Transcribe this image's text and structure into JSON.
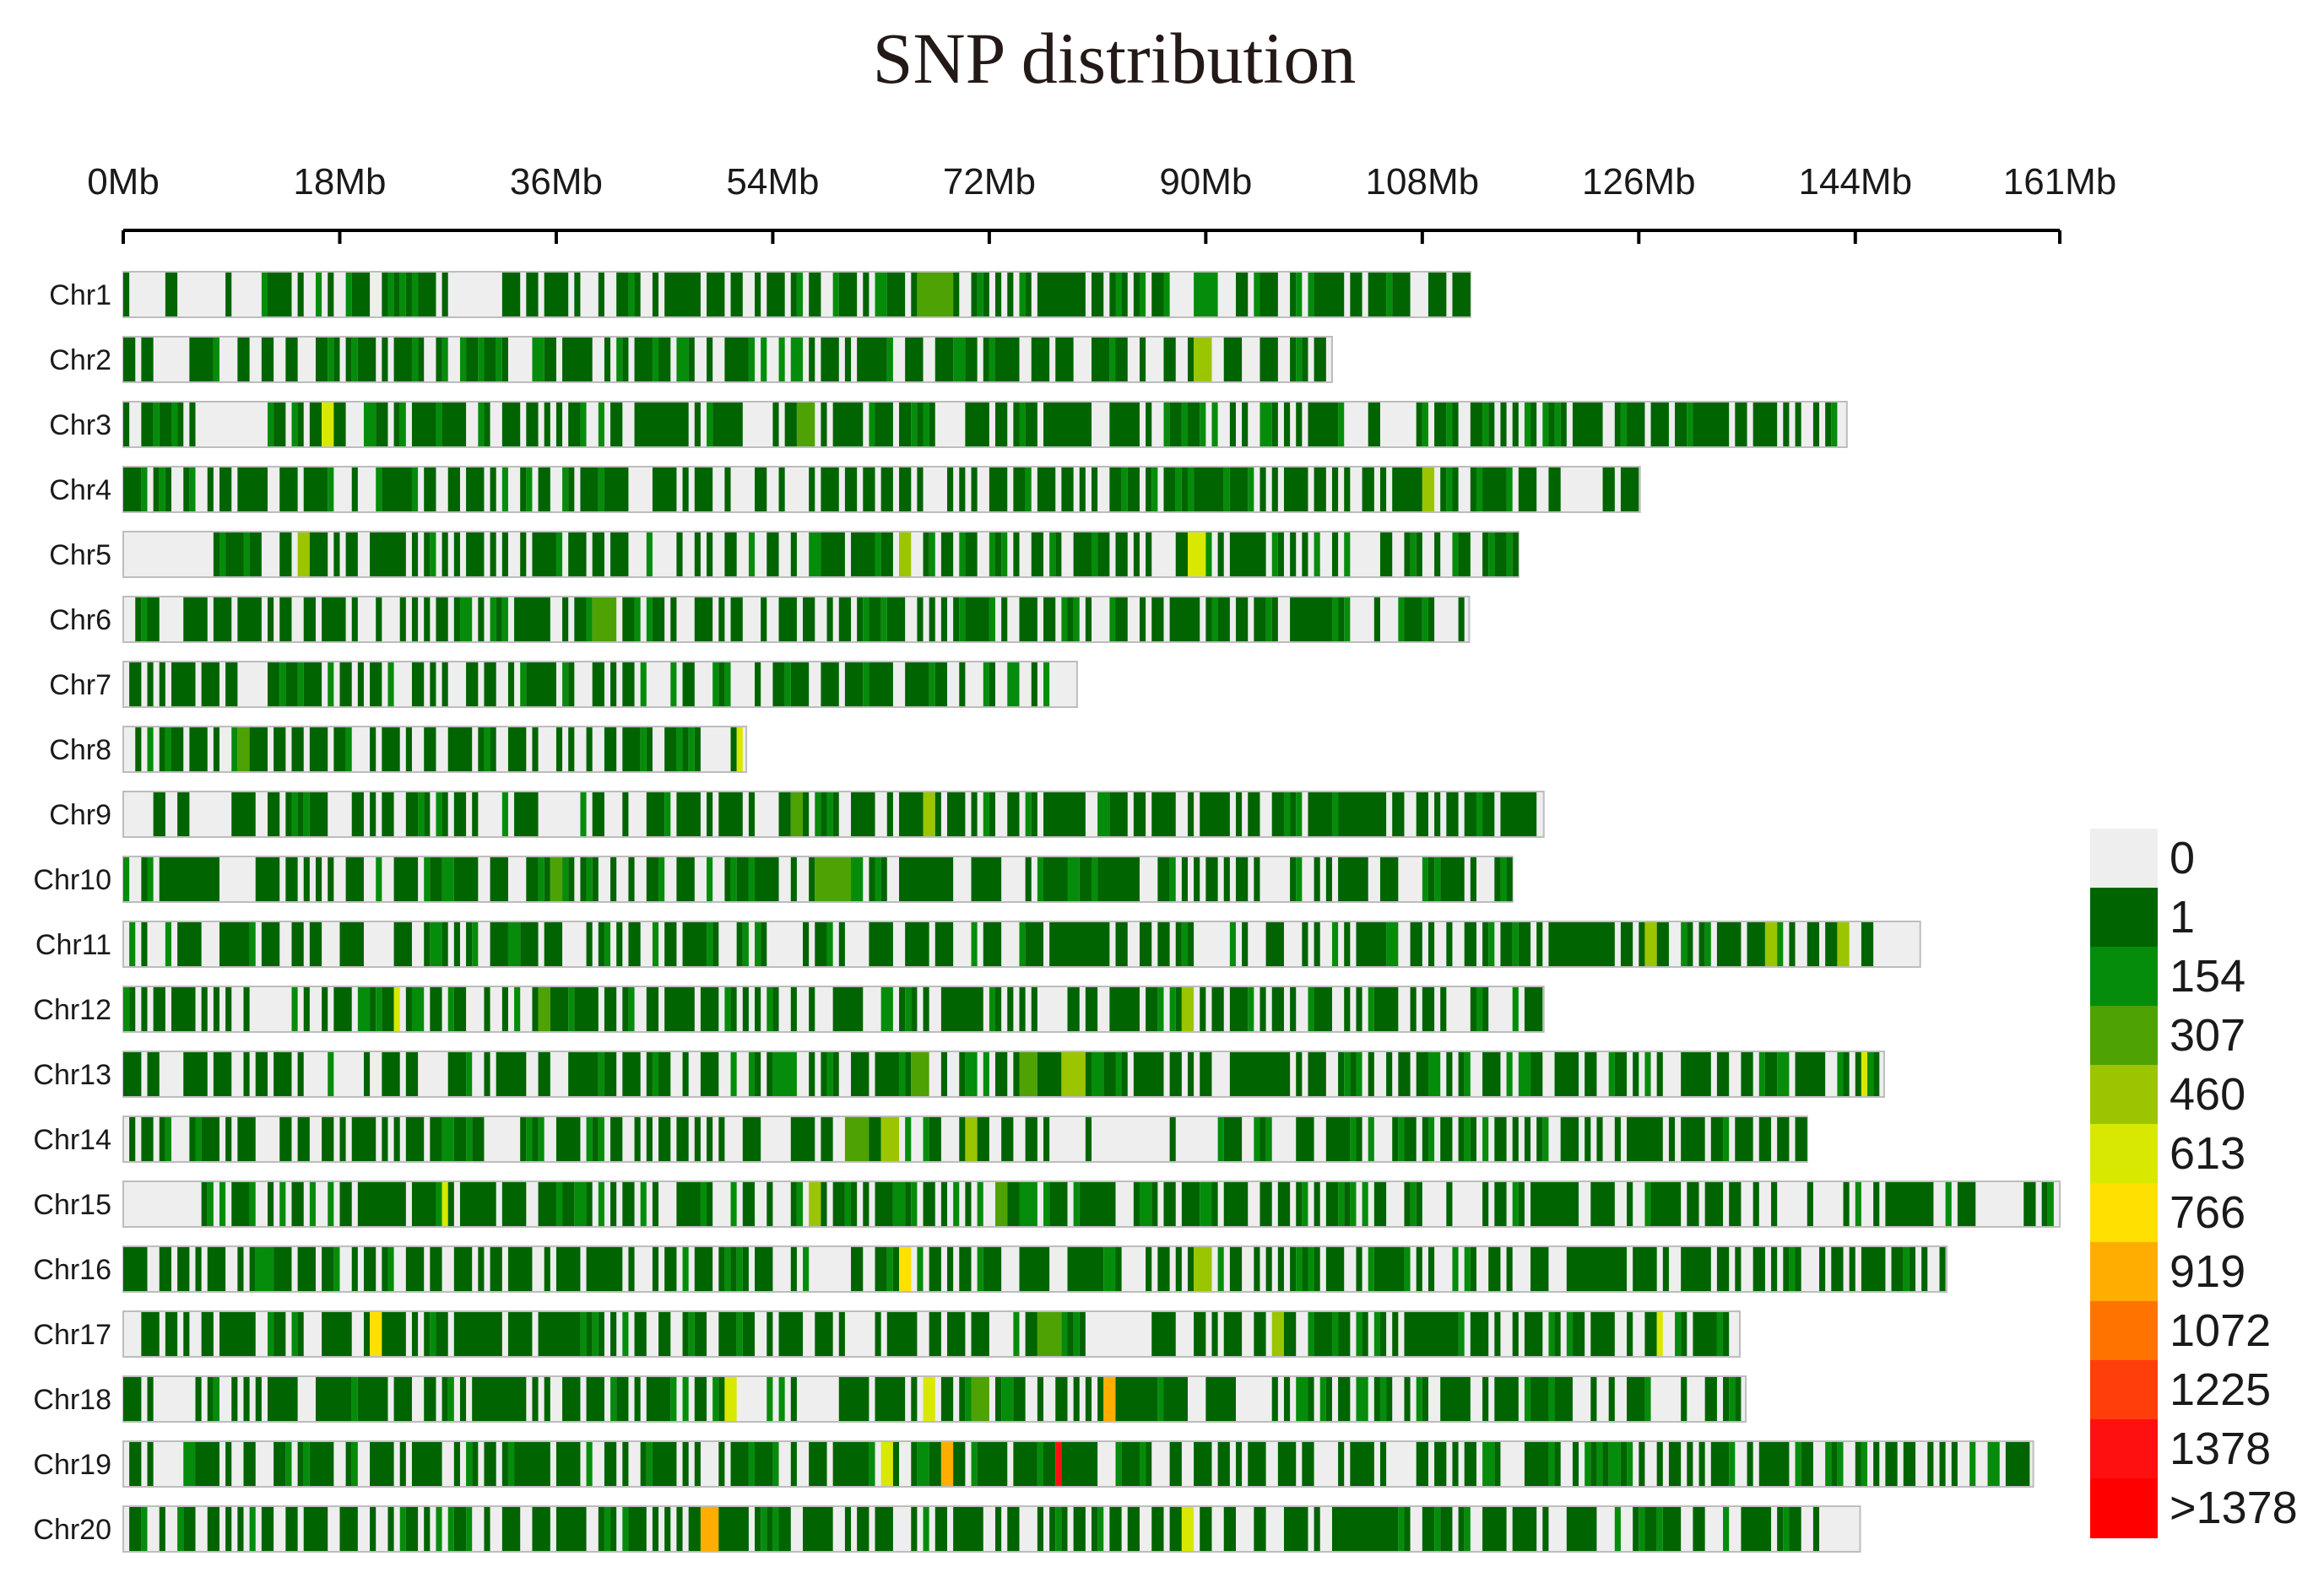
{
  "chart_data": {
    "type": "heatmap",
    "title": "SNP distribution",
    "x_unit": "Mb",
    "x_ticks": [
      "0Mb",
      "18Mb",
      "36Mb",
      "54Mb",
      "72Mb",
      "90Mb",
      "108Mb",
      "126Mb",
      "144Mb",
      "161Mb"
    ],
    "x_tick_values": [
      0,
      18,
      36,
      54,
      72,
      90,
      108,
      126,
      144,
      161
    ],
    "xlim": [
      0,
      161
    ],
    "bin_size_mb": 0.5,
    "chromosomes": [
      {
        "name": "Chr1",
        "length_mb": 112.0,
        "empty_ranges": [
          [
            5,
            8
          ],
          [
            28,
            30
          ]
        ],
        "hotspots": [
          [
            67.5,
            3,
            307
          ],
          [
            90,
            1.5,
            154
          ]
        ]
      },
      {
        "name": "Chr2",
        "length_mb": 100.5,
        "empty_ranges": [
          [
            3,
            5
          ],
          [
            25,
            26
          ]
        ],
        "hotspots": [
          [
            89.5,
            1.5,
            460
          ]
        ]
      },
      {
        "name": "Chr3",
        "length_mb": 143.3,
        "empty_ranges": [
          [
            7,
            12
          ],
          [
            105,
            107
          ]
        ],
        "hotspots": [
          [
            17,
            1,
            613
          ],
          [
            56.5,
            1.5,
            307
          ]
        ]
      },
      {
        "name": "Chr4",
        "length_mb": 126.1,
        "empty_ranges": [
          [
            42,
            44
          ],
          [
            120,
            123
          ]
        ],
        "hotspots": [
          [
            108.5,
            1,
            460
          ]
        ]
      },
      {
        "name": "Chr5",
        "length_mb": 116.0,
        "empty_ranges": [
          [
            0,
            6
          ],
          [
            44,
            46
          ]
        ],
        "hotspots": [
          [
            15,
            1,
            460
          ],
          [
            65,
            1,
            460
          ],
          [
            89,
            1.5,
            613
          ]
        ]
      },
      {
        "name": "Chr6",
        "length_mb": 111.9,
        "empty_ranges": [
          [
            3,
            5
          ]
        ],
        "hotspots": [
          [
            40,
            2,
            307
          ]
        ]
      },
      {
        "name": "Chr7",
        "length_mb": 79.3,
        "empty_ranges": [
          [
            77,
            79.3
          ]
        ],
        "hotspots": []
      },
      {
        "name": "Chr8",
        "length_mb": 51.8,
        "empty_ranges": [
          [
            8,
            9
          ],
          [
            48,
            50.5
          ]
        ],
        "hotspots": [
          [
            10,
            1,
            307
          ],
          [
            51.2,
            0.6,
            613
          ]
        ]
      },
      {
        "name": "Chr9",
        "length_mb": 118.1,
        "empty_ranges": [
          [
            6,
            9
          ]
        ],
        "hotspots": [
          [
            56,
            1,
            307
          ],
          [
            67,
            1,
            460
          ]
        ]
      },
      {
        "name": "Chr10",
        "length_mb": 115.5,
        "empty_ranges": [
          [
            8,
            9
          ],
          [
            95,
            97
          ]
        ],
        "hotspots": [
          [
            59,
            3,
            307
          ],
          [
            36,
            1,
            307
          ]
        ]
      },
      {
        "name": "Chr11",
        "length_mb": 149.4,
        "empty_ranges": [
          [
            90,
            92
          ],
          [
            146,
            149.4
          ]
        ],
        "hotspots": [
          [
            127,
            1,
            460
          ],
          [
            137,
            1,
            460
          ],
          [
            143,
            1,
            460
          ]
        ]
      },
      {
        "name": "Chr12",
        "length_mb": 118.1,
        "empty_ranges": [
          [
            11,
            13
          ],
          [
            56,
            57
          ]
        ],
        "hotspots": [
          [
            22.5,
            0.6,
            613
          ],
          [
            35,
            1,
            307
          ],
          [
            88.5,
            1,
            460
          ]
        ]
      },
      {
        "name": "Chr13",
        "length_mb": 146.4,
        "empty_ranges": [
          [
            15,
            17
          ],
          [
            25,
            27
          ]
        ],
        "hotspots": [
          [
            66,
            1.5,
            307
          ],
          [
            75,
            1.5,
            307
          ],
          [
            79,
            2,
            460
          ],
          [
            144.5,
            0.8,
            613
          ]
        ]
      },
      {
        "name": "Chr14",
        "length_mb": 140.0,
        "empty_ranges": [
          [
            77,
            80
          ],
          [
            80.5,
            87
          ],
          [
            87.5,
            90.5
          ]
        ],
        "hotspots": [
          [
            61,
            2,
            307
          ],
          [
            63.5,
            1.5,
            460
          ],
          [
            70.5,
            1,
            460
          ]
        ]
      },
      {
        "name": "Chr15",
        "length_mb": 161.0,
        "empty_ranges": [
          [
            0,
            6.5
          ],
          [
            155,
            158
          ]
        ],
        "hotspots": [
          [
            26.5,
            0.8,
            613
          ],
          [
            57.5,
            1,
            460
          ],
          [
            73,
            1,
            307
          ]
        ]
      },
      {
        "name": "Chr16",
        "length_mb": 151.6,
        "empty_ranges": [
          [
            57,
            60
          ],
          [
            83,
            85
          ]
        ],
        "hotspots": [
          [
            65,
            1,
            766
          ],
          [
            89.5,
            1.5,
            460
          ]
        ]
      },
      {
        "name": "Chr17",
        "length_mb": 134.4,
        "empty_ranges": [
          [
            15,
            16.5
          ],
          [
            80,
            85
          ]
        ],
        "hotspots": [
          [
            21,
            1,
            766
          ],
          [
            77,
            2,
            307
          ],
          [
            96,
            1,
            460
          ],
          [
            127.5,
            0.8,
            613
          ]
        ]
      },
      {
        "name": "Chr18",
        "length_mb": 134.9,
        "empty_ranges": [
          [
            3,
            6
          ],
          [
            51,
            53
          ]
        ],
        "hotspots": [
          [
            50.5,
            1,
            613
          ],
          [
            67,
            1,
            613
          ],
          [
            71,
            1.5,
            307
          ],
          [
            82,
            1,
            919
          ]
        ]
      },
      {
        "name": "Chr19",
        "length_mb": 158.8,
        "empty_ranges": [
          [
            3,
            5
          ],
          [
            81,
            82.5
          ]
        ],
        "hotspots": [
          [
            63.5,
            1,
            613
          ],
          [
            68.5,
            1,
            919
          ],
          [
            77.5,
            0.8,
            1378
          ]
        ]
      },
      {
        "name": "Chr20",
        "length_mb": 144.4,
        "empty_ranges": [
          [
            141,
            143.5
          ]
        ],
        "hotspots": [
          [
            48.5,
            1.5,
            919
          ],
          [
            88.5,
            1,
            613
          ],
          [
            144,
            0.5,
            766
          ]
        ]
      }
    ],
    "legend": {
      "labels": [
        "0",
        "1",
        "154",
        "307",
        "460",
        "613",
        "766",
        "919",
        "1072",
        "1225",
        "1378",
        ">1378"
      ],
      "colors": [
        "#eeeeee",
        "#006400",
        "#068c0b",
        "#4ea204",
        "#9bc500",
        "#d9e800",
        "#ffe000",
        "#ffad00",
        "#ff7400",
        "#ff3e0a",
        "#ff1010",
        "#ff0000"
      ]
    }
  }
}
